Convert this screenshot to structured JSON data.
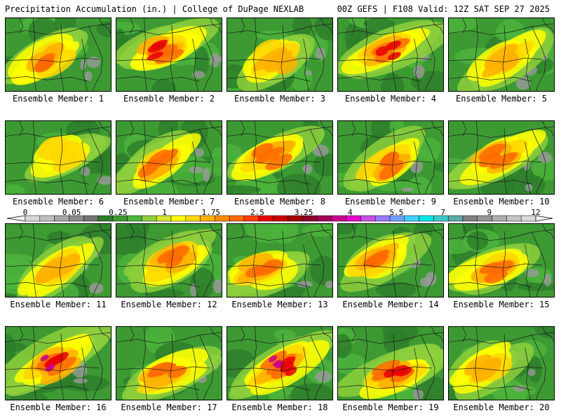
{
  "header": {
    "left_title": "Precipitation Accumulation (in.) | College of DuPage NEXLAB",
    "right_title": "00Z GEFS | F108 Valid: 12Z SAT SEP 27 2025"
  },
  "colorbar": {
    "tick_labels": [
      "0",
      "0.05",
      "0.25",
      "1",
      "1.75",
      "2.5",
      "3.25",
      "4",
      "5.5",
      "7",
      "9",
      "12"
    ],
    "colors": [
      "#d8d8d8",
      "#bfbfbf",
      "#a6a6a6",
      "#8c8c8c",
      "#737373",
      "#2d7d2a",
      "#3d9a33",
      "#4cb43c",
      "#8dcf3c",
      "#d8e62e",
      "#ffff00",
      "#ffd700",
      "#ffb000",
      "#ff8c00",
      "#ff6a00",
      "#ff3c00",
      "#e60000",
      "#c80000",
      "#a30000",
      "#8a0028",
      "#a0005a",
      "#c8008c",
      "#e600c8",
      "#c850e6",
      "#9a7aff",
      "#6fa0ff",
      "#40d0ff",
      "#00e6e6",
      "#40c8c8",
      "#5aaaaa",
      "#808080",
      "#969696",
      "#adadad",
      "#c4c4c4",
      "#dadada"
    ]
  },
  "members": [
    {
      "label": "Ensemble Member: 1",
      "intensity": 0.55
    },
    {
      "label": "Ensemble Member: 2",
      "intensity": 0.75
    },
    {
      "label": "Ensemble Member: 3",
      "intensity": 0.45
    },
    {
      "label": "Ensemble Member: 4",
      "intensity": 0.7
    },
    {
      "label": "Ensemble Member: 5",
      "intensity": 0.5
    },
    {
      "label": "Ensemble Member: 6",
      "intensity": 0.35
    },
    {
      "label": "Ensemble Member: 7",
      "intensity": 0.6
    },
    {
      "label": "Ensemble Member: 8",
      "intensity": 0.65
    },
    {
      "label": "Ensemble Member: 9",
      "intensity": 0.55
    },
    {
      "label": "Ensemble Member: 10",
      "intensity": 0.6
    },
    {
      "label": "Ensemble Member: 11",
      "intensity": 0.5
    },
    {
      "label": "Ensemble Member: 12",
      "intensity": 0.55
    },
    {
      "label": "Ensemble Member: 13",
      "intensity": 0.65
    },
    {
      "label": "Ensemble Member: 14",
      "intensity": 0.6
    },
    {
      "label": "Ensemble Member: 15",
      "intensity": 0.55
    },
    {
      "label": "Ensemble Member: 16",
      "intensity": 0.85
    },
    {
      "label": "Ensemble Member: 17",
      "intensity": 0.6
    },
    {
      "label": "Ensemble Member: 18",
      "intensity": 0.85
    },
    {
      "label": "Ensemble Member: 19",
      "intensity": 0.75
    },
    {
      "label": "Ensemble Member: 20",
      "intensity": 0.4
    }
  ]
}
